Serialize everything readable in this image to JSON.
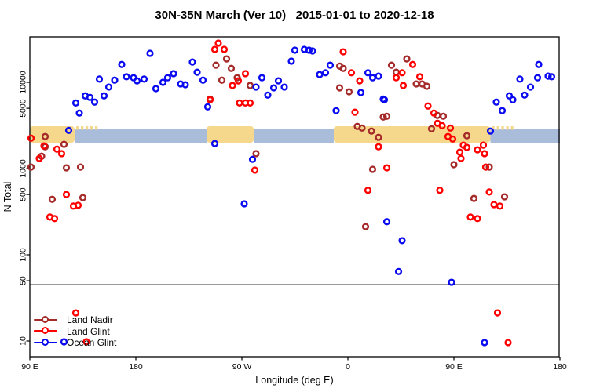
{
  "title": "30N-35N March (Ver 10)   2015-01-01 to 2020-12-18",
  "legend": {
    "items": [
      {
        "id": "land_nadir",
        "label": "Land Nadir",
        "color": "#A52A2A"
      },
      {
        "id": "land_glint",
        "label": "Land Glint",
        "color": "#FF0000"
      },
      {
        "id": "ocean_glint",
        "label": "Ocean Glint",
        "color": "#0A0AF0"
      }
    ]
  },
  "chart_data": {
    "type": "scatter",
    "title": "30N-35N March (Ver 10)   2015-01-01 to 2020-12-18",
    "xlabel": "Longitude (deg E)",
    "ylabel": "N Total",
    "x_axis": {
      "note": "longitude axis starts at 90E and continues eastward 450 degrees (wraps past 180 and around to 180 again); values below are unwrapped degrees 90-540",
      "range": [
        90,
        540
      ],
      "ticks": [
        {
          "deg": 90,
          "label": "90 E"
        },
        {
          "deg": 180,
          "label": "180"
        },
        {
          "deg": 270,
          "label": "90 W"
        },
        {
          "deg": 360,
          "label": "0"
        },
        {
          "deg": 450,
          "label": "90 E"
        },
        {
          "deg": 540,
          "label": "180"
        }
      ]
    },
    "y_axis": {
      "scale": "log",
      "range": [
        6.6,
        33700
      ],
      "ticks": [
        {
          "value": 10,
          "label": "10"
        },
        {
          "value": 50,
          "label": "50"
        },
        {
          "value": 100,
          "label": "100"
        },
        {
          "value": 500,
          "label": "500"
        },
        {
          "value": 1000,
          "label": "1000"
        },
        {
          "value": 5000,
          "label": "5000"
        },
        {
          "value": 10000,
          "label": "10000"
        }
      ]
    },
    "reference_line_n": 45,
    "map_strip": {
      "description": "world map band for 30N-35N latitude drawn across plot near N=2500",
      "land_color": "#F6D88C",
      "ocean_color": "#A9BDDB",
      "segments": [
        {
          "type": "ocean",
          "from": 128,
          "to": 240
        },
        {
          "type": "ocean",
          "from": 280,
          "to": 348
        },
        {
          "type": "ocean",
          "from": 481,
          "to": 540
        },
        {
          "type": "land",
          "from": 90,
          "to": 128
        },
        {
          "type": "land",
          "from": 240,
          "to": 280
        },
        {
          "type": "land",
          "from": 348,
          "to": 481
        },
        {
          "type": "islands",
          "from": 128,
          "to": 146
        },
        {
          "type": "islands",
          "from": 481,
          "to": 500
        }
      ]
    },
    "series": [
      {
        "id": "land_nadir",
        "name": "Land Nadir",
        "color": "#A52A2A",
        "points": [
          [
            103,
            2350
          ],
          [
            103,
            1790
          ],
          [
            119,
            1910
          ],
          [
            100,
            1390
          ],
          [
            91,
            1040
          ],
          [
            121,
            1020
          ],
          [
            133,
            1040
          ],
          [
            109,
            440
          ],
          [
            135,
            460
          ],
          [
            248,
            15800
          ],
          [
            257,
            18700
          ],
          [
            261,
            14500
          ],
          [
            266,
            11300
          ],
          [
            277,
            9190
          ],
          [
            253,
            10600
          ],
          [
            243,
            6400
          ],
          [
            282,
            1490
          ],
          [
            353,
            15400
          ],
          [
            356,
            14500
          ],
          [
            353,
            8630
          ],
          [
            361,
            7770
          ],
          [
            368,
            3080
          ],
          [
            372,
            2950
          ],
          [
            380,
            2720
          ],
          [
            386,
            2300
          ],
          [
            381,
            980
          ],
          [
            390,
            3960
          ],
          [
            375,
            212
          ],
          [
            397,
            15800
          ],
          [
            401,
            13100
          ],
          [
            410,
            18700
          ],
          [
            418,
            9580
          ],
          [
            423,
            9580
          ],
          [
            427,
            9000
          ],
          [
            393,
            4040
          ],
          [
            436,
            4130
          ],
          [
            441,
            4040
          ],
          [
            431,
            2890
          ],
          [
            461,
            2400
          ],
          [
            450,
            1110
          ],
          [
            480,
            1040
          ],
          [
            467,
            450
          ],
          [
            493,
            470
          ]
        ]
      },
      {
        "id": "land_glint",
        "name": "Land Glint",
        "color": "#FF0000",
        "points": [
          [
            91,
            2250
          ],
          [
            102,
            1830
          ],
          [
            113,
            1680
          ],
          [
            117,
            1490
          ],
          [
            98,
            1310
          ],
          [
            121,
            500
          ],
          [
            127,
            367
          ],
          [
            131,
            375
          ],
          [
            107,
            274
          ],
          [
            111,
            263
          ],
          [
            250,
            28500
          ],
          [
            247,
            24100
          ],
          [
            255,
            24100
          ],
          [
            356,
            22600
          ],
          [
            273,
            12600
          ],
          [
            267,
            10400
          ],
          [
            262,
            9190
          ],
          [
            243,
            6270
          ],
          [
            268,
            5760
          ],
          [
            273,
            5760
          ],
          [
            277,
            5760
          ],
          [
            363,
            12900
          ],
          [
            370,
            10400
          ],
          [
            366,
            4500
          ],
          [
            281,
            960
          ],
          [
            377,
            560
          ],
          [
            386,
            1790
          ],
          [
            406,
            12900
          ],
          [
            401,
            11300
          ],
          [
            407,
            9190
          ],
          [
            415,
            16100
          ],
          [
            421,
            11600
          ],
          [
            428,
            5310
          ],
          [
            433,
            4400
          ],
          [
            436,
            3350
          ],
          [
            440,
            3140
          ],
          [
            447,
            2950
          ],
          [
            445,
            2350
          ],
          [
            449,
            2200
          ],
          [
            458,
            1870
          ],
          [
            455,
            1550
          ],
          [
            456,
            1310
          ],
          [
            461,
            1760
          ],
          [
            475,
            1870
          ],
          [
            470,
            1650
          ],
          [
            476,
            1490
          ],
          [
            477,
            1040
          ],
          [
            438,
            560
          ],
          [
            480,
            535
          ],
          [
            484,
            382
          ],
          [
            489,
            367
          ],
          [
            464,
            274
          ],
          [
            470,
            263
          ],
          [
            393,
            1020
          ],
          [
            129,
            21.2
          ],
          [
            138,
            9.8
          ],
          [
            487,
            21.2
          ],
          [
            496,
            9.6
          ]
        ]
      },
      {
        "id": "ocean_glint",
        "name": "Ocean Glint",
        "color": "#0A0AF0",
        "points": [
          [
            192,
            21700
          ],
          [
            168,
            16100
          ],
          [
            228,
            17200
          ],
          [
            232,
            13100
          ],
          [
            149,
            10900
          ],
          [
            162,
            10600
          ],
          [
            172,
            11600
          ],
          [
            178,
            11300
          ],
          [
            181,
            10400
          ],
          [
            187,
            10900
          ],
          [
            157,
            8810
          ],
          [
            153,
            6970
          ],
          [
            197,
            8450
          ],
          [
            203,
            10000
          ],
          [
            207,
            11300
          ],
          [
            212,
            12600
          ],
          [
            218,
            9580
          ],
          [
            222,
            9380
          ],
          [
            237,
            10600
          ],
          [
            241,
            5200
          ],
          [
            129,
            5760
          ],
          [
            137,
            6970
          ],
          [
            141,
            6680
          ],
          [
            145,
            5890
          ],
          [
            132,
            4400
          ],
          [
            123,
            2770
          ],
          [
            315,
            23600
          ],
          [
            323,
            24100
          ],
          [
            327,
            23600
          ],
          [
            330,
            23100
          ],
          [
            312,
            17600
          ],
          [
            336,
            12300
          ],
          [
            341,
            12900
          ],
          [
            345,
            15800
          ],
          [
            287,
            11300
          ],
          [
            282,
            8810
          ],
          [
            292,
            7110
          ],
          [
            297,
            8630
          ],
          [
            301,
            10400
          ],
          [
            306,
            8810
          ],
          [
            377,
            12900
          ],
          [
            381,
            11300
          ],
          [
            386,
            11800
          ],
          [
            350,
            4690
          ],
          [
            371,
            7610
          ],
          [
            390,
            6400
          ],
          [
            247,
            1950
          ],
          [
            279,
            1280
          ],
          [
            272,
            390
          ],
          [
            393,
            242
          ],
          [
            391,
            6270
          ],
          [
            481,
            2720
          ],
          [
            486,
            5890
          ],
          [
            491,
            4690
          ],
          [
            497,
            6970
          ],
          [
            500,
            6270
          ],
          [
            506,
            10900
          ],
          [
            510,
            7110
          ],
          [
            515,
            8810
          ],
          [
            521,
            11300
          ],
          [
            522,
            16100
          ],
          [
            530,
            11800
          ],
          [
            533,
            11600
          ],
          [
            406,
            146
          ],
          [
            403,
            64
          ],
          [
            448,
            48
          ],
          [
            119,
            9.8
          ],
          [
            476,
            9.6
          ]
        ]
      }
    ]
  }
}
